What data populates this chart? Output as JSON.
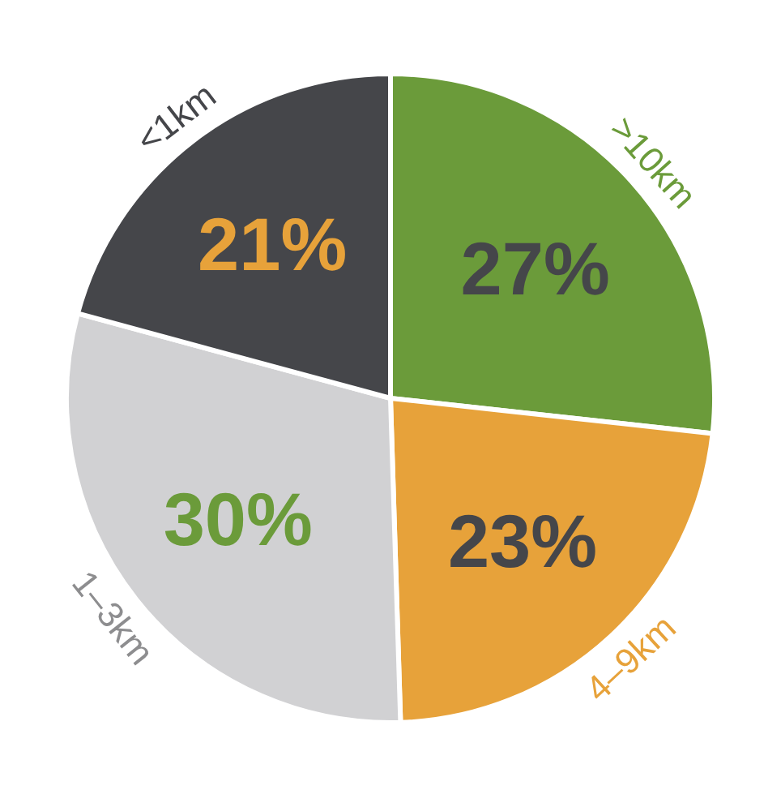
{
  "chart_data": {
    "type": "pie",
    "categories": [
      ">10km",
      "4–9km",
      "1–3km",
      "<1km"
    ],
    "values": [
      27,
      23,
      30,
      21
    ],
    "value_labels": [
      "27%",
      "23%",
      "30%",
      "21%"
    ],
    "colors": [
      "#6b9b3a",
      "#e7a23a",
      "#d1d1d3",
      "#45464a"
    ]
  }
}
